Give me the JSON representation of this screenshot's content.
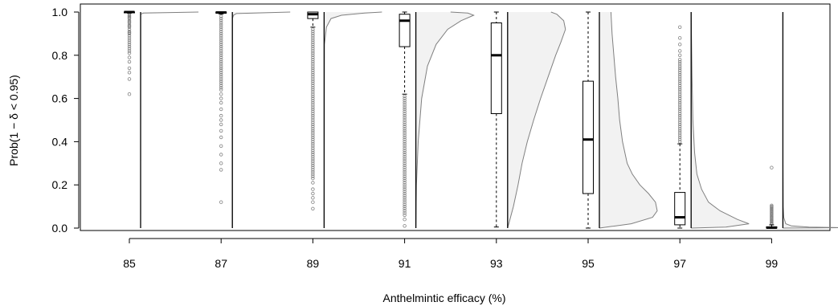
{
  "chart_data": {
    "type": "box-violin",
    "title": "",
    "xlabel": "Anthelmintic efficacy (%)",
    "ylabel": "Prob(1 − δ < 0.95)",
    "ylim": [
      0,
      1
    ],
    "yticks": [
      "0.0",
      "0.2",
      "0.4",
      "0.6",
      "0.8",
      "1.0"
    ],
    "categories": [
      "85",
      "87",
      "89",
      "91",
      "93",
      "95",
      "97",
      "99"
    ],
    "grid": false,
    "colors": {
      "box": "#000000",
      "outlier": "#808080",
      "density_fill": "#f2f2f2",
      "density_line": "#808080"
    },
    "boxes": [
      {
        "category": "85",
        "min": 0.995,
        "q1": 0.998,
        "median": 1.0,
        "q3": 1.0,
        "max": 1.0,
        "outliers": [
          0.99,
          0.985,
          0.98,
          0.975,
          0.97,
          0.96,
          0.955,
          0.95,
          0.94,
          0.935,
          0.93,
          0.92,
          0.91,
          0.905,
          0.9,
          0.89,
          0.88,
          0.87,
          0.86,
          0.85,
          0.84,
          0.83,
          0.82,
          0.81,
          0.79,
          0.77,
          0.74,
          0.72,
          0.69,
          0.62
        ]
      },
      {
        "category": "87",
        "min": 0.99,
        "q1": 0.995,
        "median": 0.998,
        "q3": 1.0,
        "max": 1.0,
        "outliers": [
          0.98,
          0.97,
          0.96,
          0.95,
          0.94,
          0.93,
          0.92,
          0.91,
          0.9,
          0.89,
          0.88,
          0.87,
          0.86,
          0.85,
          0.84,
          0.83,
          0.82,
          0.81,
          0.8,
          0.79,
          0.78,
          0.77,
          0.76,
          0.75,
          0.74,
          0.73,
          0.72,
          0.71,
          0.7,
          0.69,
          0.68,
          0.67,
          0.66,
          0.65,
          0.64,
          0.62,
          0.6,
          0.58,
          0.55,
          0.52,
          0.5,
          0.48,
          0.45,
          0.42,
          0.38,
          0.34,
          0.3,
          0.27,
          0.12
        ]
      },
      {
        "category": "89",
        "min": 0.93,
        "q1": 0.97,
        "median": 0.99,
        "q3": 1.0,
        "max": 1.0,
        "outliers": [
          0.92,
          0.91,
          0.9,
          0.89,
          0.88,
          0.87,
          0.86,
          0.85,
          0.84,
          0.83,
          0.82,
          0.81,
          0.8,
          0.79,
          0.78,
          0.77,
          0.76,
          0.75,
          0.74,
          0.73,
          0.72,
          0.71,
          0.7,
          0.69,
          0.68,
          0.67,
          0.66,
          0.65,
          0.64,
          0.63,
          0.62,
          0.61,
          0.6,
          0.59,
          0.58,
          0.57,
          0.56,
          0.55,
          0.54,
          0.53,
          0.52,
          0.51,
          0.5,
          0.49,
          0.48,
          0.47,
          0.46,
          0.45,
          0.44,
          0.43,
          0.42,
          0.41,
          0.4,
          0.39,
          0.38,
          0.37,
          0.36,
          0.35,
          0.34,
          0.33,
          0.32,
          0.31,
          0.3,
          0.29,
          0.28,
          0.27,
          0.26,
          0.25,
          0.24,
          0.23,
          0.21,
          0.18,
          0.16,
          0.14,
          0.12,
          0.09
        ]
      },
      {
        "category": "91",
        "min": 0.62,
        "q1": 0.84,
        "median": 0.96,
        "q3": 0.99,
        "max": 1.0,
        "outliers": [
          0.61,
          0.6,
          0.59,
          0.58,
          0.57,
          0.56,
          0.55,
          0.54,
          0.53,
          0.52,
          0.51,
          0.5,
          0.49,
          0.48,
          0.47,
          0.46,
          0.45,
          0.44,
          0.43,
          0.42,
          0.41,
          0.4,
          0.39,
          0.38,
          0.37,
          0.36,
          0.35,
          0.34,
          0.33,
          0.32,
          0.31,
          0.3,
          0.29,
          0.28,
          0.27,
          0.26,
          0.25,
          0.24,
          0.23,
          0.22,
          0.21,
          0.2,
          0.19,
          0.18,
          0.17,
          0.16,
          0.15,
          0.14,
          0.13,
          0.12,
          0.11,
          0.1,
          0.09,
          0.08,
          0.07,
          0.06,
          0.04,
          0.01
        ]
      },
      {
        "category": "93",
        "min": 0.005,
        "q1": 0.53,
        "median": 0.8,
        "q3": 0.95,
        "max": 1.0,
        "outliers": []
      },
      {
        "category": "95",
        "min": 0.0,
        "q1": 0.16,
        "median": 0.41,
        "q3": 0.68,
        "max": 1.0,
        "outliers": []
      },
      {
        "category": "97",
        "min": 0.0,
        "q1": 0.015,
        "median": 0.05,
        "q3": 0.165,
        "max": 0.39,
        "outliers": [
          0.4,
          0.41,
          0.42,
          0.43,
          0.44,
          0.45,
          0.46,
          0.47,
          0.48,
          0.49,
          0.5,
          0.51,
          0.52,
          0.53,
          0.54,
          0.55,
          0.56,
          0.57,
          0.58,
          0.59,
          0.6,
          0.61,
          0.62,
          0.63,
          0.64,
          0.65,
          0.66,
          0.67,
          0.68,
          0.69,
          0.7,
          0.71,
          0.72,
          0.73,
          0.74,
          0.75,
          0.76,
          0.77,
          0.78,
          0.8,
          0.82,
          0.85,
          0.88,
          0.93
        ]
      },
      {
        "category": "99",
        "min": 0.0,
        "q1": 0.0,
        "median": 0.002,
        "q3": 0.006,
        "max": 0.015,
        "outliers": [
          0.02,
          0.025,
          0.03,
          0.035,
          0.04,
          0.045,
          0.05,
          0.055,
          0.06,
          0.065,
          0.07,
          0.075,
          0.08,
          0.085,
          0.09,
          0.095,
          0.1,
          0.105,
          0.28
        ]
      }
    ],
    "densities": [
      {
        "category": "85",
        "y": [
          0.0,
          0.99,
          0.995,
          1.0
        ],
        "d": [
          0.0,
          0.002,
          0.05,
          1.0
        ]
      },
      {
        "category": "87",
        "y": [
          0.0,
          0.97,
          0.985,
          0.993,
          1.0
        ],
        "d": [
          0.0,
          0.002,
          0.02,
          0.07,
          1.0
        ]
      },
      {
        "category": "89",
        "y": [
          0.0,
          0.85,
          0.93,
          0.97,
          0.985,
          0.995,
          1.0
        ],
        "d": [
          0.0,
          0.005,
          0.04,
          0.12,
          0.3,
          0.7,
          1.0
        ]
      },
      {
        "category": "91",
        "y": [
          0.0,
          0.2,
          0.4,
          0.6,
          0.75,
          0.85,
          0.92,
          0.96,
          0.985,
          0.995,
          1.0
        ],
        "d": [
          0.0,
          0.01,
          0.04,
          0.1,
          0.2,
          0.35,
          0.55,
          0.78,
          1.0,
          0.9,
          0.6
        ]
      },
      {
        "category": "93",
        "y": [
          0.0,
          0.05,
          0.1,
          0.2,
          0.3,
          0.4,
          0.5,
          0.6,
          0.7,
          0.8,
          0.86,
          0.92,
          0.96,
          0.99,
          1.0
        ],
        "d": [
          0.0,
          0.05,
          0.1,
          0.18,
          0.25,
          0.34,
          0.45,
          0.57,
          0.7,
          0.83,
          0.92,
          1.0,
          0.97,
          0.85,
          0.75
        ]
      },
      {
        "category": "95",
        "y": [
          0.0,
          0.02,
          0.05,
          0.08,
          0.12,
          0.16,
          0.2,
          0.25,
          0.3,
          0.4,
          0.5,
          0.6,
          0.7,
          0.8,
          0.9,
          1.0
        ],
        "d": [
          0.0,
          0.55,
          0.92,
          1.0,
          0.97,
          0.85,
          0.7,
          0.57,
          0.48,
          0.4,
          0.35,
          0.32,
          0.28,
          0.25,
          0.22,
          0.2
        ]
      },
      {
        "category": "97",
        "y": [
          0.0,
          0.005,
          0.02,
          0.04,
          0.08,
          0.12,
          0.18,
          0.25,
          0.35,
          0.5,
          0.7,
          0.9,
          1.0
        ],
        "d": [
          0.0,
          0.6,
          1.0,
          0.8,
          0.5,
          0.3,
          0.18,
          0.1,
          0.06,
          0.03,
          0.015,
          0.005,
          0.0
        ]
      },
      {
        "category": "99",
        "y": [
          0.0,
          0.002,
          0.005,
          0.01,
          0.02,
          0.05,
          0.1,
          0.3,
          1.0
        ],
        "d": [
          0.0,
          1.0,
          0.45,
          0.15,
          0.05,
          0.015,
          0.005,
          0.001,
          0.0
        ]
      }
    ]
  }
}
